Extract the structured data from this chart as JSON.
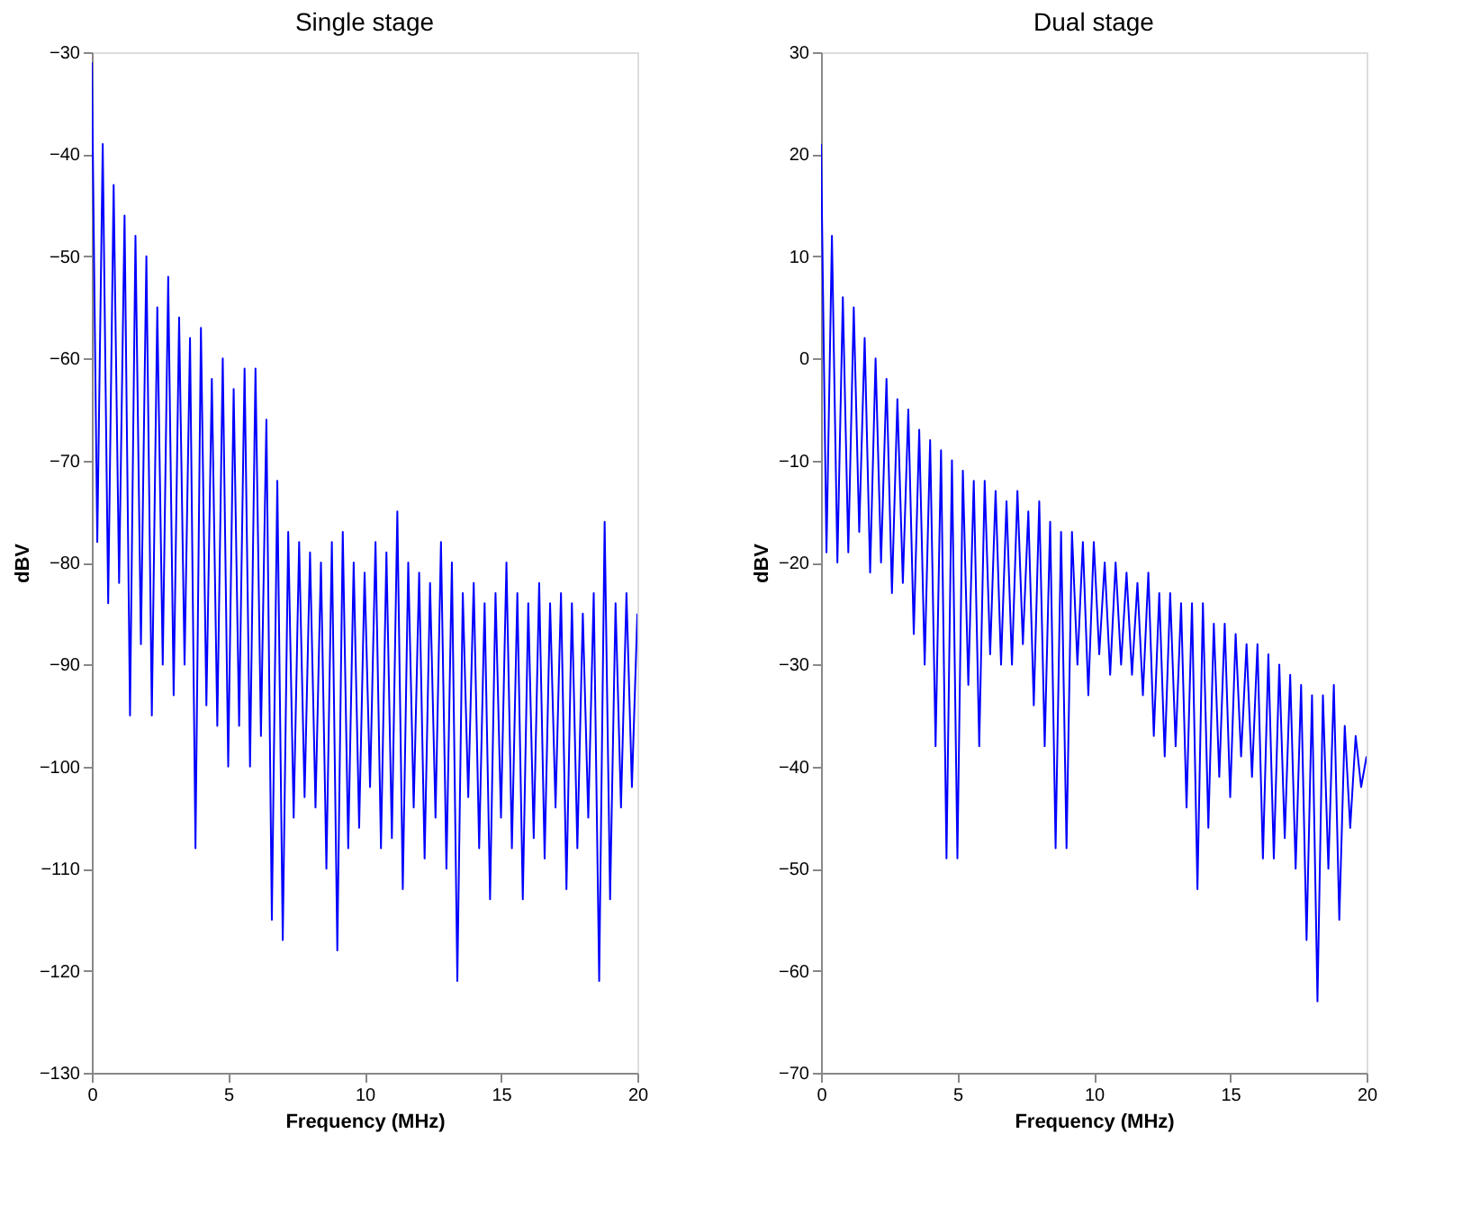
{
  "chart_data": [
    {
      "type": "line",
      "title": "Single stage",
      "xlabel": "Frequency (MHz)",
      "ylabel": "dBV",
      "xlim": [
        0,
        20
      ],
      "xticks": [
        0,
        5,
        10,
        15,
        20
      ],
      "ylim": [
        -130,
        -30
      ],
      "yticks": [
        -130,
        -120,
        -110,
        -100,
        -90,
        -80,
        -70,
        -60,
        -50,
        -40,
        -30
      ],
      "grid": false,
      "legend": false,
      "x": [
        0,
        0.2,
        0.4,
        0.6,
        0.8,
        1,
        1.2,
        1.4,
        1.6,
        1.8,
        2,
        2.2,
        2.4,
        2.6,
        2.8,
        3,
        3.2,
        3.4,
        3.6,
        3.8,
        4,
        4.2,
        4.4,
        4.6,
        4.8,
        5,
        5.2,
        5.4,
        5.6,
        5.8,
        6,
        6.2,
        6.4,
        6.6,
        6.8,
        7,
        7.2,
        7.4,
        7.6,
        7.8,
        8,
        8.2,
        8.4,
        8.6,
        8.8,
        9,
        9.2,
        9.4,
        9.6,
        9.8,
        10,
        10.2,
        10.4,
        10.6,
        10.8,
        11,
        11.2,
        11.4,
        11.6,
        11.8,
        12,
        12.2,
        12.4,
        12.6,
        12.8,
        13,
        13.2,
        13.4,
        13.6,
        13.8,
        14,
        14.2,
        14.4,
        14.6,
        14.8,
        15,
        15.2,
        15.4,
        15.6,
        15.8,
        16,
        16.2,
        16.4,
        16.6,
        16.8,
        17,
        17.2,
        17.4,
        17.6,
        17.8,
        18,
        18.2,
        18.4,
        18.6,
        18.8,
        19,
        19.2,
        19.4,
        19.6,
        19.8,
        20
      ],
      "series": [
        {
          "color": "#0000ff",
          "values": [
            -31,
            -78,
            -39,
            -84,
            -43,
            -82,
            -46,
            -95,
            -48,
            -88,
            -50,
            -95,
            -55,
            -90,
            -52,
            -93,
            -56,
            -90,
            -58,
            -108,
            -57,
            -94,
            -62,
            -96,
            -60,
            -100,
            -63,
            -96,
            -61,
            -100,
            -61,
            -97,
            -66,
            -115,
            -72,
            -117,
            -77,
            -105,
            -78,
            -103,
            -79,
            -104,
            -80,
            -110,
            -78,
            -118,
            -77,
            -108,
            -80,
            -106,
            -81,
            -102,
            -78,
            -108,
            -79,
            -107,
            -75,
            -112,
            -80,
            -104,
            -81,
            -109,
            -82,
            -105,
            -78,
            -110,
            -80,
            -121,
            -83,
            -103,
            -82,
            -108,
            -84,
            -113,
            -83,
            -105,
            -80,
            -108,
            -83,
            -113,
            -84,
            -107,
            -82,
            -109,
            -84,
            -104,
            -83,
            -112,
            -84,
            -108,
            -85,
            -105,
            -83,
            -121,
            -76,
            -113,
            -84,
            -104,
            -83,
            -102,
            -85
          ]
        }
      ]
    },
    {
      "type": "line",
      "title": "Dual stage",
      "xlabel": "Frequency (MHz)",
      "ylabel": "dBV",
      "xlim": [
        0,
        20
      ],
      "xticks": [
        0,
        5,
        10,
        15,
        20
      ],
      "ylim": [
        -70,
        30
      ],
      "yticks": [
        -70,
        -60,
        -50,
        -40,
        -30,
        -20,
        -10,
        0,
        10,
        20,
        30
      ],
      "grid": false,
      "legend": false,
      "x": [
        0,
        0.2,
        0.4,
        0.6,
        0.8,
        1,
        1.2,
        1.4,
        1.6,
        1.8,
        2,
        2.2,
        2.4,
        2.6,
        2.8,
        3,
        3.2,
        3.4,
        3.6,
        3.8,
        4,
        4.2,
        4.4,
        4.6,
        4.8,
        5,
        5.2,
        5.4,
        5.6,
        5.8,
        6,
        6.2,
        6.4,
        6.6,
        6.8,
        7,
        7.2,
        7.4,
        7.6,
        7.8,
        8,
        8.2,
        8.4,
        8.6,
        8.8,
        9,
        9.2,
        9.4,
        9.6,
        9.8,
        10,
        10.2,
        10.4,
        10.6,
        10.8,
        11,
        11.2,
        11.4,
        11.6,
        11.8,
        12,
        12.2,
        12.4,
        12.6,
        12.8,
        13,
        13.2,
        13.4,
        13.6,
        13.8,
        14,
        14.2,
        14.4,
        14.6,
        14.8,
        15,
        15.2,
        15.4,
        15.6,
        15.8,
        16,
        16.2,
        16.4,
        16.6,
        16.8,
        17,
        17.2,
        17.4,
        17.6,
        17.8,
        18,
        18.2,
        18.4,
        18.6,
        18.8,
        19,
        19.2,
        19.4,
        19.6,
        19.8,
        20
      ],
      "series": [
        {
          "color": "#0000ff",
          "values": [
            21,
            -19,
            12,
            -20,
            6,
            -19,
            5,
            -17,
            2,
            -21,
            0,
            -20,
            -2,
            -23,
            -4,
            -22,
            -5,
            -27,
            -7,
            -30,
            -8,
            -38,
            -9,
            -49,
            -10,
            -49,
            -11,
            -32,
            -12,
            -38,
            -12,
            -29,
            -13,
            -30,
            -14,
            -30,
            -13,
            -28,
            -15,
            -34,
            -14,
            -38,
            -16,
            -48,
            -17,
            -48,
            -17,
            -30,
            -18,
            -33,
            -18,
            -29,
            -20,
            -31,
            -20,
            -30,
            -21,
            -31,
            -22,
            -33,
            -21,
            -37,
            -23,
            -39,
            -23,
            -38,
            -24,
            -44,
            -24,
            -52,
            -24,
            -46,
            -26,
            -41,
            -26,
            -43,
            -27,
            -39,
            -28,
            -41,
            -28,
            -49,
            -29,
            -49,
            -30,
            -47,
            -31,
            -50,
            -32,
            -57,
            -33,
            -63,
            -33,
            -50,
            -32,
            -55,
            -36,
            -46,
            -37,
            -42,
            -39
          ]
        }
      ]
    }
  ]
}
